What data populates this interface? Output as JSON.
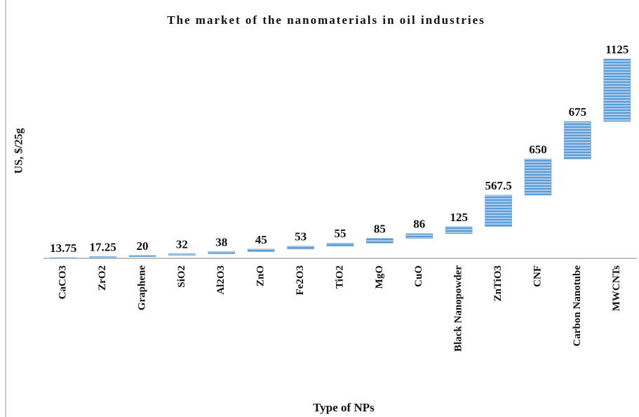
{
  "chart_data": {
    "type": "waterfall",
    "title": "The market of the nanomaterials in oil industries",
    "x_label": "Type of NPs",
    "y_label": "US, $/25g",
    "categories": [
      "CaCO3",
      "ZrO2",
      "Graphene",
      "SiO2",
      "Al2O3",
      "ZnO",
      "Fe2O3",
      "TiO2",
      "MgO",
      "CuO",
      "Black Nanopowder",
      "ZnTiO3",
      "CNF",
      "Carbon Nanotube",
      "MWCNTs"
    ],
    "values": [
      13.75,
      17.25,
      20,
      32,
      38,
      45,
      53,
      55,
      85,
      86,
      125,
      567.5,
      650,
      675,
      1125
    ],
    "color": "#5b9bd5",
    "ylim": [
      0,
      3600
    ]
  }
}
